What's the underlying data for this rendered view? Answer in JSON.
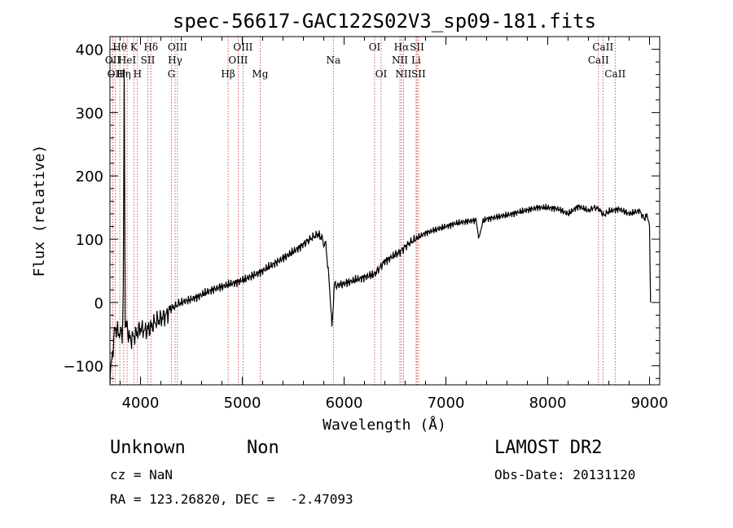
{
  "chart_data": {
    "type": "line",
    "title": "spec-56617-GAC122S02V3_sp09-181.fits",
    "xlabel": "Wavelength (Å)",
    "ylabel": "Flux (relative)",
    "xlim": [
      3700,
      9100
    ],
    "ylim": [
      -130,
      420
    ],
    "x_ticks": [
      4000,
      5000,
      6000,
      7000,
      8000,
      9000
    ],
    "y_ticks": [
      -100,
      0,
      100,
      200,
      300,
      400
    ],
    "grid": false,
    "series": [
      {
        "x": [
          3700,
          3750,
          3800,
          3820,
          3830,
          3840,
          3850,
          3900,
          3950,
          4000,
          4050,
          4100,
          4150,
          4200,
          4250,
          4300,
          4350,
          4400,
          4500,
          4600,
          4700,
          4800,
          4900,
          5000,
          5100,
          5200,
          5300,
          5400,
          5500,
          5600,
          5650,
          5700,
          5750,
          5780,
          5800,
          5820,
          5850,
          5870,
          5880,
          5890,
          5900,
          5910,
          5920,
          5950,
          6000,
          6100,
          6200,
          6300,
          6350,
          6400,
          6500,
          6550,
          6600,
          6650,
          6700,
          6800,
          6900,
          7000,
          7100,
          7200,
          7300,
          7320,
          7340,
          7360,
          7400,
          7500,
          7600,
          7700,
          7800,
          7900,
          8000,
          8100,
          8200,
          8300,
          8400,
          8450,
          8500,
          8550,
          8600,
          8700,
          8800,
          8900,
          8950,
          8980,
          9000,
          9010
        ],
        "y": [
          -120,
          -40,
          -50,
          -60,
          0,
          360,
          -30,
          -60,
          -50,
          -40,
          -45,
          -40,
          -30,
          -25,
          -20,
          -10,
          -5,
          0,
          5,
          12,
          20,
          25,
          30,
          35,
          42,
          50,
          60,
          70,
          80,
          92,
          98,
          104,
          108,
          100,
          96,
          90,
          40,
          -10,
          -40,
          -20,
          20,
          40,
          25,
          28,
          30,
          35,
          40,
          45,
          55,
          65,
          75,
          80,
          88,
          95,
          100,
          110,
          115,
          120,
          125,
          128,
          130,
          100,
          112,
          128,
          132,
          135,
          138,
          142,
          146,
          150,
          150,
          148,
          140,
          152,
          145,
          150,
          148,
          138,
          144,
          148,
          140,
          145,
          132,
          140,
          115,
          0
        ]
      }
    ],
    "spectral_lines": [
      {
        "x": 3728,
        "label": "OII",
        "row": 2
      },
      {
        "x": 3750,
        "label": "OII",
        "row": 3
      },
      {
        "x": 3797,
        "label": "Hθ",
        "row": 1
      },
      {
        "x": 3835,
        "label": "Hη",
        "row": 3
      },
      {
        "x": 3869,
        "label": "HeI",
        "row": 2
      },
      {
        "x": 3934,
        "label": "K",
        "row": 1
      },
      {
        "x": 3970,
        "label": "H",
        "row": 3
      },
      {
        "x": 4072,
        "label": "SII",
        "row": 2
      },
      {
        "x": 4102,
        "label": "Hδ",
        "row": 1
      },
      {
        "x": 4304,
        "label": "G",
        "row": 3
      },
      {
        "x": 4340,
        "label": "Hγ",
        "row": 2
      },
      {
        "x": 4363,
        "label": "OIII",
        "row": 1
      },
      {
        "x": 4861,
        "label": "Hβ",
        "row": 3
      },
      {
        "x": 4959,
        "label": "OIII",
        "row": 2
      },
      {
        "x": 5007,
        "label": "OIII",
        "row": 1
      },
      {
        "x": 5175,
        "label": "Mg",
        "row": 3
      },
      {
        "x": 5894,
        "label": "Na",
        "row": 2
      },
      {
        "x": 6300,
        "label": "OI",
        "row": 1
      },
      {
        "x": 6364,
        "label": "OI",
        "row": 3
      },
      {
        "x": 6548,
        "label": "NII",
        "row": 2
      },
      {
        "x": 6563,
        "label": "Hα",
        "row": 1
      },
      {
        "x": 6583,
        "label": "NII",
        "row": 3
      },
      {
        "x": 6707,
        "label": "Li",
        "row": 2
      },
      {
        "x": 6716,
        "label": "SII",
        "row": 1
      },
      {
        "x": 6731,
        "label": "SII",
        "row": 3
      },
      {
        "x": 8498,
        "label": "CaII",
        "row": 2
      },
      {
        "x": 8542,
        "label": "CaII",
        "row": 1
      },
      {
        "x": 8662,
        "label": "CaII",
        "row": 3
      }
    ],
    "colors": {
      "spectrum": "#000000",
      "line_marker": "#c03030",
      "frame": "#000000"
    }
  },
  "info": {
    "object_class": "Unknown",
    "subclass": "Non",
    "survey": "LAMOST DR2",
    "redshift": "cz = NaN",
    "obs_date": "Obs-Date: 20131120",
    "coords": "RA = 123.26820, DEC =  -2.47093"
  }
}
